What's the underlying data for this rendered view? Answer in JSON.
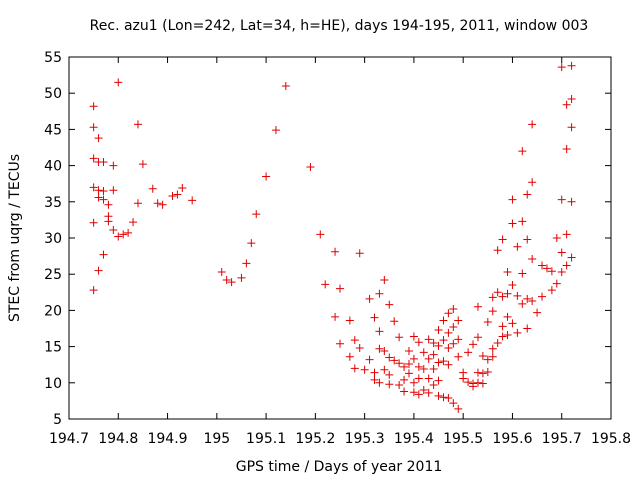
{
  "chart_data": {
    "type": "scatter",
    "title": "Rec. azu1 (Lon=242, Lat=34, h=HE), days 194-195, 2011, window 003",
    "xlabel": "GPS time / Days of year 2011",
    "ylabel": "STEC from uqrg / TECUs",
    "xlim": [
      194.7,
      195.8
    ],
    "ylim": [
      5,
      55
    ],
    "xticks": [
      194.7,
      194.8,
      194.9,
      195,
      195.1,
      195.2,
      195.3,
      195.4,
      195.5,
      195.6,
      195.7,
      195.8
    ],
    "xtick_labels": [
      "194.7",
      "194.8",
      "194.9",
      "195",
      "195.1",
      "195.2",
      "195.3",
      "195.4",
      "195.5",
      "195.6",
      "195.7",
      "195.8"
    ],
    "yticks": [
      5,
      10,
      15,
      20,
      25,
      30,
      35,
      40,
      45,
      50,
      55
    ],
    "ytick_labels": [
      "5",
      "10",
      "15",
      "20",
      "25",
      "30",
      "35",
      "40",
      "45",
      "50",
      "55"
    ],
    "grid": false,
    "marker": "+",
    "marker_color": "#e00000",
    "series": [
      {
        "points": [
          [
            194.75,
            48.2
          ],
          [
            194.75,
            45.3
          ],
          [
            194.75,
            41.0
          ],
          [
            194.75,
            37.0
          ],
          [
            194.75,
            32.1
          ],
          [
            194.75,
            22.8
          ],
          [
            194.76,
            43.8
          ],
          [
            194.76,
            40.5
          ],
          [
            194.76,
            36.6
          ],
          [
            194.76,
            35.6
          ],
          [
            194.76,
            25.5
          ],
          [
            194.77,
            40.5
          ],
          [
            194.77,
            36.5
          ],
          [
            194.77,
            35.3
          ],
          [
            194.77,
            27.7
          ],
          [
            194.78,
            34.6
          ],
          [
            194.78,
            33.0
          ],
          [
            194.78,
            32.3
          ],
          [
            194.79,
            40.0
          ],
          [
            194.79,
            36.6
          ],
          [
            194.79,
            31.1
          ],
          [
            194.8,
            30.2
          ],
          [
            194.8,
            51.5
          ],
          [
            194.81,
            30.5
          ],
          [
            194.82,
            30.7
          ],
          [
            194.83,
            32.2
          ],
          [
            194.84,
            45.7
          ],
          [
            194.84,
            34.8
          ],
          [
            194.85,
            40.2
          ],
          [
            194.87,
            36.8
          ],
          [
            194.88,
            34.8
          ],
          [
            194.89,
            34.6
          ],
          [
            194.91,
            35.8
          ],
          [
            194.92,
            36.0
          ],
          [
            194.93,
            36.9
          ],
          [
            194.95,
            35.2
          ],
          [
            195.01,
            25.3
          ],
          [
            195.02,
            24.2
          ],
          [
            195.03,
            23.9
          ],
          [
            195.05,
            24.5
          ],
          [
            195.06,
            26.5
          ],
          [
            195.07,
            29.3
          ],
          [
            195.08,
            33.3
          ],
          [
            195.1,
            38.5
          ],
          [
            195.12,
            44.9
          ],
          [
            195.14,
            51.0
          ],
          [
            195.19,
            39.8
          ],
          [
            195.21,
            30.5
          ],
          [
            195.22,
            23.6
          ],
          [
            195.24,
            28.1
          ],
          [
            195.24,
            19.1
          ],
          [
            195.25,
            23.0
          ],
          [
            195.25,
            15.4
          ],
          [
            195.27,
            18.6
          ],
          [
            195.27,
            13.6
          ],
          [
            195.28,
            15.9
          ],
          [
            195.28,
            12.0
          ],
          [
            195.29,
            27.9
          ],
          [
            195.29,
            14.8
          ],
          [
            195.3,
            11.8
          ],
          [
            195.31,
            21.6
          ],
          [
            195.31,
            13.2
          ],
          [
            195.32,
            19.0
          ],
          [
            195.32,
            11.4
          ],
          [
            195.32,
            10.4
          ],
          [
            195.33,
            22.3
          ],
          [
            195.33,
            17.1
          ],
          [
            195.33,
            14.7
          ],
          [
            195.33,
            10.0
          ],
          [
            195.34,
            24.2
          ],
          [
            195.34,
            14.4
          ],
          [
            195.34,
            11.8
          ],
          [
            195.35,
            20.8
          ],
          [
            195.35,
            13.5
          ],
          [
            195.35,
            11.1
          ],
          [
            195.35,
            9.8
          ],
          [
            195.36,
            18.5
          ],
          [
            195.36,
            13.1
          ],
          [
            195.37,
            16.3
          ],
          [
            195.37,
            12.7
          ],
          [
            195.37,
            9.7
          ],
          [
            195.38,
            12.2
          ],
          [
            195.38,
            10.4
          ],
          [
            195.38,
            8.8
          ],
          [
            195.39,
            14.4
          ],
          [
            195.39,
            12.6
          ],
          [
            195.39,
            11.3
          ],
          [
            195.4,
            16.4
          ],
          [
            195.4,
            13.3
          ],
          [
            195.4,
            10.0
          ],
          [
            195.4,
            8.7
          ],
          [
            195.41,
            15.6
          ],
          [
            195.41,
            12.2
          ],
          [
            195.41,
            10.6
          ],
          [
            195.41,
            8.4
          ],
          [
            195.42,
            14.2
          ],
          [
            195.42,
            11.9
          ],
          [
            195.42,
            9.0
          ],
          [
            195.43,
            16.0
          ],
          [
            195.43,
            13.3
          ],
          [
            195.43,
            10.6
          ],
          [
            195.43,
            8.6
          ],
          [
            195.44,
            15.5
          ],
          [
            195.44,
            13.9
          ],
          [
            195.44,
            11.9
          ],
          [
            195.44,
            9.7
          ],
          [
            195.45,
            17.3
          ],
          [
            195.45,
            15.1
          ],
          [
            195.45,
            12.8
          ],
          [
            195.45,
            10.3
          ],
          [
            195.45,
            8.2
          ],
          [
            195.46,
            18.6
          ],
          [
            195.46,
            15.9
          ],
          [
            195.46,
            13.0
          ],
          [
            195.46,
            8.0
          ],
          [
            195.47,
            19.6
          ],
          [
            195.47,
            16.9
          ],
          [
            195.47,
            14.8
          ],
          [
            195.47,
            12.5
          ],
          [
            195.47,
            7.9
          ],
          [
            195.48,
            20.2
          ],
          [
            195.48,
            17.7
          ],
          [
            195.48,
            15.4
          ],
          [
            195.48,
            7.2
          ],
          [
            195.49,
            18.6
          ],
          [
            195.49,
            16.0
          ],
          [
            195.49,
            13.6
          ],
          [
            195.49,
            6.4
          ],
          [
            195.5,
            11.4
          ],
          [
            195.5,
            10.6
          ],
          [
            195.51,
            14.2
          ],
          [
            195.51,
            10.1
          ],
          [
            195.52,
            15.3
          ],
          [
            195.52,
            9.9
          ],
          [
            195.52,
            9.5
          ],
          [
            195.53,
            20.5
          ],
          [
            195.53,
            16.3
          ],
          [
            195.53,
            11.4
          ],
          [
            195.53,
            10.0
          ],
          [
            195.54,
            13.7
          ],
          [
            195.54,
            11.3
          ],
          [
            195.54,
            9.9
          ],
          [
            195.55,
            18.4
          ],
          [
            195.55,
            13.2
          ],
          [
            195.55,
            11.5
          ],
          [
            195.56,
            21.8
          ],
          [
            195.56,
            19.9
          ],
          [
            195.56,
            14.7
          ],
          [
            195.56,
            13.6
          ],
          [
            195.57,
            28.3
          ],
          [
            195.57,
            22.5
          ],
          [
            195.57,
            15.5
          ],
          [
            195.58,
            29.8
          ],
          [
            195.58,
            21.9
          ],
          [
            195.58,
            17.8
          ],
          [
            195.58,
            16.4
          ],
          [
            195.59,
            25.3
          ],
          [
            195.59,
            22.3
          ],
          [
            195.59,
            19.1
          ],
          [
            195.59,
            16.6
          ],
          [
            195.6,
            35.3
          ],
          [
            195.6,
            32.0
          ],
          [
            195.6,
            23.5
          ],
          [
            195.6,
            18.2
          ],
          [
            195.61,
            28.8
          ],
          [
            195.61,
            22.0
          ],
          [
            195.61,
            16.9
          ],
          [
            195.62,
            42.0
          ],
          [
            195.62,
            32.3
          ],
          [
            195.62,
            25.1
          ],
          [
            195.62,
            20.9
          ],
          [
            195.63,
            36.0
          ],
          [
            195.63,
            29.8
          ],
          [
            195.63,
            21.6
          ],
          [
            195.63,
            17.5
          ],
          [
            195.64,
            45.7
          ],
          [
            195.64,
            37.7
          ],
          [
            195.64,
            27.1
          ],
          [
            195.64,
            21.3
          ],
          [
            195.65,
            19.7
          ],
          [
            195.66,
            26.2
          ],
          [
            195.66,
            21.9
          ],
          [
            195.67,
            25.8
          ],
          [
            195.68,
            25.4
          ],
          [
            195.68,
            22.8
          ],
          [
            195.69,
            30.0
          ],
          [
            195.69,
            23.7
          ],
          [
            195.7,
            53.6
          ],
          [
            195.7,
            35.3
          ],
          [
            195.7,
            28.0
          ],
          [
            195.7,
            25.3
          ],
          [
            195.71,
            48.4
          ],
          [
            195.71,
            42.3
          ],
          [
            195.71,
            30.5
          ],
          [
            195.71,
            26.2
          ],
          [
            195.72,
            53.8
          ],
          [
            195.72,
            49.2
          ],
          [
            195.72,
            45.3
          ],
          [
            195.72,
            35.0
          ],
          [
            195.72,
            27.3
          ]
        ]
      }
    ]
  }
}
